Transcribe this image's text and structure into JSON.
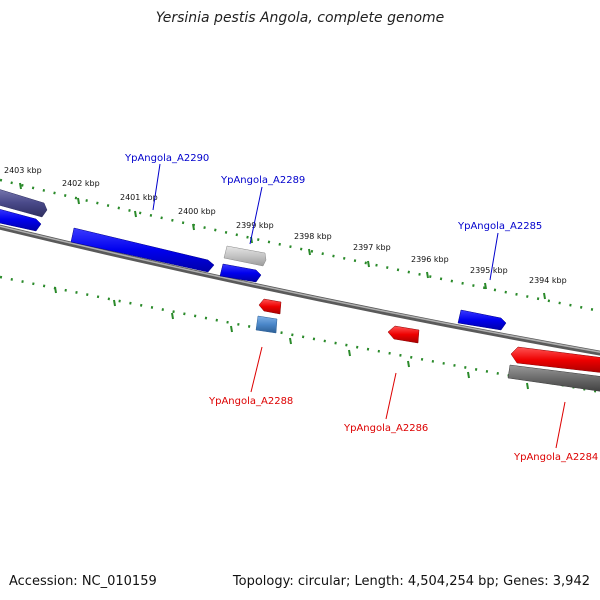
{
  "title": "Yersinia pestis Angola, complete genome",
  "accession_text": "Accession: NC_010159",
  "summary_text": "Topology: circular; Length: 4,504,254 bp; Genes: 3,942",
  "colors": {
    "forward_strand": "#0000ee",
    "reverse_strand": "#ee0000",
    "forward_label": "#0000cc",
    "reverse_label": "#dd0000",
    "backbone": "#808080",
    "tick": "#2a8a2a",
    "gray_gene": "#707070",
    "light_gray_gene": "#c8c8c8",
    "steel_gene": "#4a86c8",
    "navy_gene": "#4a4a8a"
  },
  "ticks": [
    {
      "label": "2403 kbp"
    },
    {
      "label": "2402 kbp"
    },
    {
      "label": "2401 kbp"
    },
    {
      "label": "2400 kbp"
    },
    {
      "label": "2399 kbp"
    },
    {
      "label": "2398 kbp"
    },
    {
      "label": "2397 kbp"
    },
    {
      "label": "2396 kbp"
    },
    {
      "label": "2395 kbp"
    },
    {
      "label": "2394 kbp"
    }
  ],
  "gene_labels": [
    {
      "name": "YpAngola_A2290"
    },
    {
      "name": "YpAngola_A2289"
    },
    {
      "name": "YpAngola_A2285"
    },
    {
      "name": "YpAngola_A2288"
    },
    {
      "name": "YpAngola_A2286"
    },
    {
      "name": "YpAngola_A2284"
    }
  ]
}
